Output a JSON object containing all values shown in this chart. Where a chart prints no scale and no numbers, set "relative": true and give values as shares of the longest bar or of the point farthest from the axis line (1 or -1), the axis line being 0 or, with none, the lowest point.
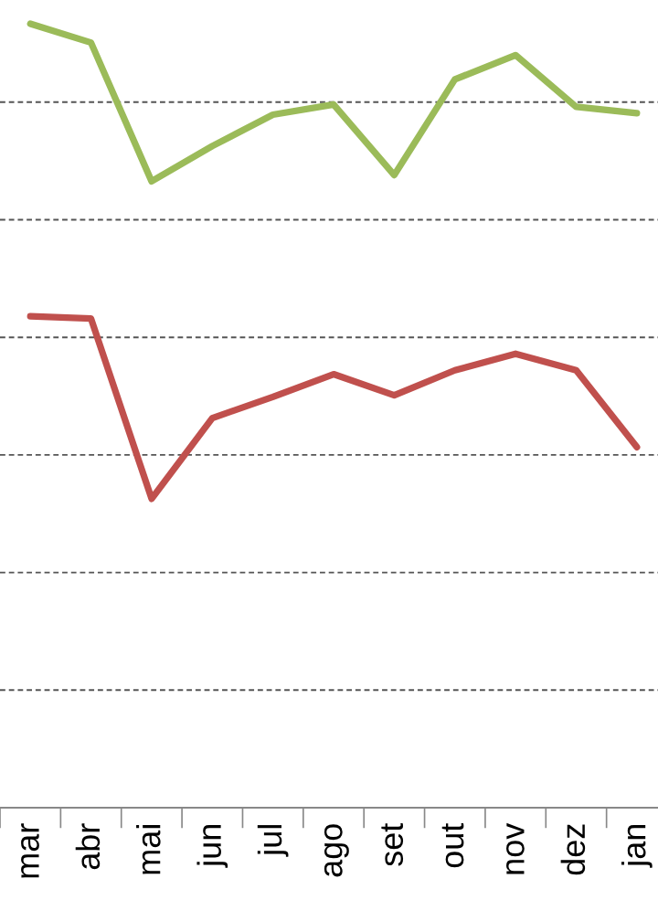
{
  "chart_data": {
    "type": "line",
    "relative": true,
    "grid": "y",
    "marker": "none",
    "line_style": "solid",
    "categories": [
      "mar",
      "abr",
      "mai",
      "jun",
      "jul",
      "ago",
      "set",
      "out",
      "nov",
      "dez",
      "jan"
    ],
    "series": [
      {
        "color": "#9bbb59",
        "values": [
          1.0,
          0.976,
          0.799,
          0.844,
          0.884,
          0.897,
          0.807,
          0.929,
          0.96,
          0.894,
          0.886
        ]
      },
      {
        "color": "#c0504d",
        "values": [
          0.627,
          0.624,
          0.394,
          0.497,
          0.524,
          0.553,
          0.526,
          0.558,
          0.579,
          0.558,
          0.46
        ]
      }
    ]
  }
}
